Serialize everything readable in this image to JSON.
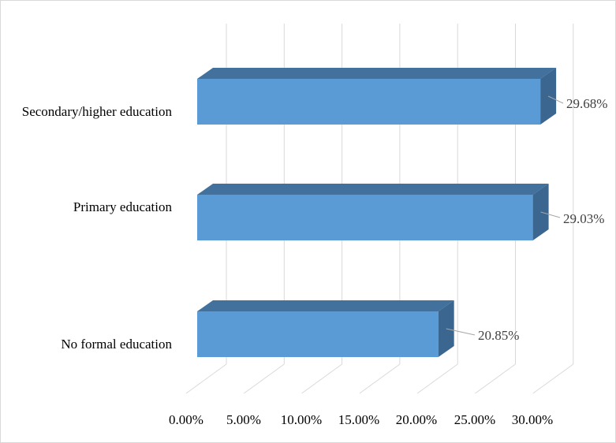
{
  "chart_data": {
    "type": "bar",
    "orientation": "horizontal",
    "style": "3d-clustered",
    "categories": [
      "Secondary/higher education",
      "Primary education",
      "No formal education"
    ],
    "values": [
      29.68,
      29.03,
      20.85
    ],
    "value_labels": [
      "29.68%",
      "29.03%",
      "20.85%"
    ],
    "xlim": [
      0,
      30
    ],
    "xticks": [
      0,
      5,
      10,
      15,
      20,
      25,
      30
    ],
    "xtick_labels": [
      "0.00%",
      "5.00%",
      "10.00%",
      "15.00%",
      "20.00%",
      "25.00%",
      "30.00%"
    ],
    "title": "",
    "xlabel": "",
    "ylabel": "",
    "grid": true,
    "legend": "none",
    "colors": {
      "bar_front": "#5b9bd5",
      "bar_top": "#41719c",
      "bar_side": "#3a6690",
      "grid": "#d9d9d9",
      "leader": "#a6a6a6"
    }
  }
}
